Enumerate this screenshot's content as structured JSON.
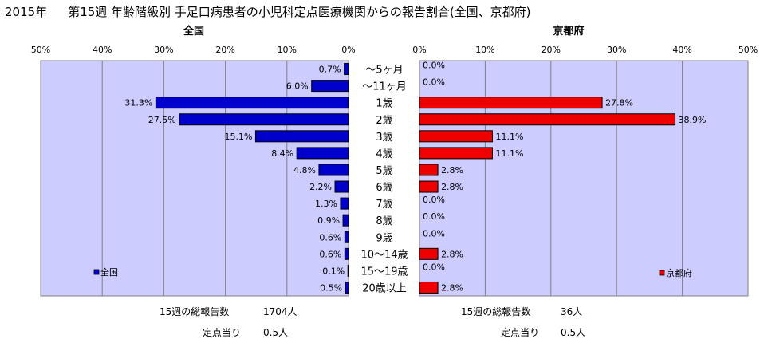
{
  "header": {
    "year": "2015年",
    "title": "第15週 年齢階級別 手足口病患者の小児科定点医療機関からの報告割合(全国、京都府)"
  },
  "chart_data": [
    {
      "type": "bar",
      "orientation": "horizontal",
      "direction": "right-to-left",
      "title": "全国",
      "categories": [
        "～5ヶ月",
        "～11ヶ月",
        "1歳",
        "2歳",
        "3歳",
        "4歳",
        "5歳",
        "6歳",
        "7歳",
        "8歳",
        "9歳",
        "10～14歳",
        "15～19歳",
        "20歳以上"
      ],
      "series": [
        {
          "name": "全国",
          "values": [
            0.7,
            6.0,
            31.3,
            27.5,
            15.1,
            8.4,
            4.8,
            2.2,
            1.3,
            0.9,
            0.6,
            0.6,
            0.1,
            0.5
          ],
          "labels": [
            "0.7%",
            "6.0%",
            "31.3%",
            "27.5%",
            "15.1%",
            "8.4%",
            "4.8%",
            "2.2%",
            "1.3%",
            "0.9%",
            "0.6%",
            "0.6%",
            "0.1%",
            "0.5%"
          ]
        }
      ],
      "xlim": [
        0,
        50
      ],
      "ticks": [
        "50%",
        "40%",
        "30%",
        "20%",
        "10%",
        "0%"
      ],
      "grid": true,
      "legend": "bottom-left",
      "color": "#0000cc"
    },
    {
      "type": "bar",
      "orientation": "horizontal",
      "direction": "left-to-right",
      "title": "京都府",
      "categories": [
        "～5ヶ月",
        "～11ヶ月",
        "1歳",
        "2歳",
        "3歳",
        "4歳",
        "5歳",
        "6歳",
        "7歳",
        "8歳",
        "9歳",
        "10～14歳",
        "15～19歳",
        "20歳以上"
      ],
      "series": [
        {
          "name": "京都府",
          "values": [
            0.0,
            0.0,
            27.8,
            38.9,
            11.1,
            11.1,
            2.8,
            2.8,
            0.0,
            0.0,
            0.0,
            2.8,
            0.0,
            2.8
          ],
          "labels": [
            "0.0%",
            "0.0%",
            "27.8%",
            "38.9%",
            "11.1%",
            "11.1%",
            "2.8%",
            "2.8%",
            "0.0%",
            "0.0%",
            "0.0%",
            "2.8%",
            "0.0%",
            "2.8%"
          ]
        }
      ],
      "xlim": [
        0,
        50
      ],
      "ticks": [
        "0%",
        "10%",
        "20%",
        "30%",
        "40%",
        "50%"
      ],
      "grid": true,
      "legend": "bottom-right",
      "color": "#ee0000"
    }
  ],
  "footer": {
    "national": {
      "total_label": "15週の総報告数",
      "total_value": "1704人",
      "per_site_label": "定点当り",
      "per_site_value": "0.5人"
    },
    "kyoto": {
      "total_label": "15週の総報告数",
      "total_value": "36人",
      "per_site_label": "定点当り",
      "per_site_value": "0.5人"
    }
  },
  "colors": {
    "plot_bg": "#ccccff",
    "national_bar": "#0000cc",
    "kyoto_bar": "#ee0000"
  }
}
